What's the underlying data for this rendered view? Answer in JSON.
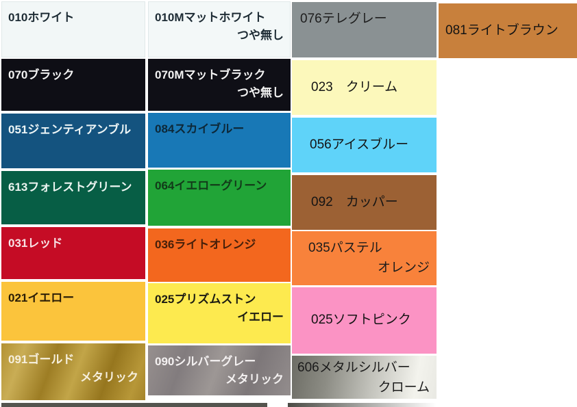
{
  "page": {
    "background": "#ffffff"
  },
  "columns": [
    {
      "cells": [
        {
          "name": "swatch-010-white",
          "line1": "010ホワイト",
          "line2": "",
          "bg": "#f2f7f7",
          "fg": "#1e2c35",
          "border": "#e0e8e9",
          "finish": "",
          "valign": "top"
        },
        {
          "name": "swatch-070-black",
          "line1": "070ブラック",
          "line2": "",
          "bg": "#0e0e15",
          "fg": "#f2f2f2",
          "finish": "",
          "valign": "top"
        },
        {
          "name": "swatch-051-gentian-blue",
          "line1": "051ジェンティアンブル",
          "line2": "",
          "bg": "#14537f",
          "fg": "#edf5f6",
          "finish": "",
          "valign": "top"
        },
        {
          "name": "swatch-613-forest-green",
          "line1": "613フォレストグリーン",
          "line2": "",
          "bg": "#075e45",
          "fg": "#ebf4f0",
          "finish": "",
          "valign": "top"
        },
        {
          "name": "swatch-031-red",
          "line1": "031レッド",
          "line2": "",
          "bg": "#c50c25",
          "fg": "#f7e3e6",
          "finish": "",
          "valign": "top"
        },
        {
          "name": "swatch-021-yellow",
          "line1": "021イエロー",
          "line2": "",
          "bg": "#fbc43c",
          "fg": "#2a1d06",
          "finish": "",
          "valign": "top"
        },
        {
          "name": "swatch-091-gold-metallic",
          "line1": "091ゴールド",
          "line2": "メタリック",
          "bg": "",
          "fg": "#f6efdd",
          "finish": "metallic-gold",
          "valign": "top"
        }
      ]
    },
    {
      "cells": [
        {
          "name": "swatch-010m-matte-white",
          "line1": "010Mマットホワイト",
          "line2": "つや無し",
          "bg": "#f3f8f8",
          "fg": "#1e2c35",
          "border": "#e0e8e9",
          "finish": "",
          "valign": "top"
        },
        {
          "name": "swatch-070m-matte-black",
          "line1": "070Mマットブラック",
          "line2": "つや無し",
          "bg": "#0f0f16",
          "fg": "#f2f2f2",
          "finish": "",
          "valign": "top"
        },
        {
          "name": "swatch-084-sky-blue",
          "line1": "084スカイブルー",
          "line2": "",
          "bg": "#1878b6",
          "fg": "#0d2838",
          "finish": "",
          "valign": "top"
        },
        {
          "name": "swatch-064-yellow-green",
          "line1": "064イエローグリーン",
          "line2": "",
          "bg": "#21a437",
          "fg": "#123a19",
          "finish": "",
          "valign": "top"
        },
        {
          "name": "swatch-036-light-orange",
          "line1": "036ライトオレンジ",
          "line2": "",
          "bg": "#f3671e",
          "fg": "#47200a",
          "finish": "",
          "valign": "top"
        },
        {
          "name": "swatch-025-prism-stone-yellow",
          "line1": "025プリズムストン",
          "line2": "イエロー",
          "bg": "#fdea4f",
          "fg": "#1b1b12",
          "finish": "",
          "valign": "top"
        },
        {
          "name": "swatch-090-silver-gray-metallic",
          "line1": "090シルバーグレー",
          "line2": "メタリック",
          "bg": "",
          "fg": "#f4f1f1",
          "finish": "metallic-silver",
          "valign": "top"
        }
      ]
    },
    {
      "cells": [
        {
          "name": "swatch-076-telegray",
          "line1": "076テレグレー",
          "line2": "",
          "bg": "#8a9193",
          "fg": "#1d1d1d",
          "finish": "",
          "valign": "top"
        },
        {
          "name": "swatch-023-cream",
          "line1": "023　クリーム",
          "line2": "",
          "bg": "#fcf8bb",
          "fg": "#141414",
          "finish": "",
          "valign": "center"
        },
        {
          "name": "swatch-056-ice-blue",
          "line1": "056アイスブルー",
          "line2": "",
          "bg": "#5fd3f9",
          "fg": "#141414",
          "finish": "",
          "valign": "center"
        },
        {
          "name": "swatch-092-copper",
          "line1": "092　カッパー",
          "line2": "",
          "bg": "#9c6134",
          "fg": "#141414",
          "finish": "",
          "valign": "center"
        },
        {
          "name": "swatch-035-pastel-orange",
          "line1": "035パステル",
          "line2": "オレンジ",
          "bg": "#f8823b",
          "fg": "#1c1c1c",
          "finish": "",
          "valign": "top"
        },
        {
          "name": "swatch-025-soft-pink",
          "line1": "025ソフトピンク",
          "line2": "",
          "bg": "#fb93c4",
          "fg": "#141414",
          "finish": "",
          "valign": "center"
        },
        {
          "name": "swatch-606-metal-silver-chrome",
          "line1": "606メタルシルバー",
          "line2": "クローム",
          "bg": "",
          "fg": "#1b1b1b",
          "finish": "chrome",
          "valign": "top"
        }
      ]
    },
    {
      "cells": [
        {
          "name": "swatch-081-light-brown",
          "line1": "081ライトブラウン",
          "line2": "",
          "bg": "#c8803c",
          "fg": "#131313",
          "finish": "",
          "valign": "center"
        }
      ]
    }
  ],
  "partial_next_row": {
    "left_strip_color": "#54544e",
    "right_strip_gradient_from": "#4b4b45",
    "right_strip_gradient_to": "#ffffff"
  },
  "chart_data": {
    "type": "table",
    "title": "カラーチャート (color swatch chart)",
    "columns": [
      "code_name",
      "hex"
    ],
    "rows": [
      {
        "label": "010ホワイト",
        "hex": "#f2f7f7"
      },
      {
        "label": "010Mマットホワイト つや無し",
        "hex": "#f3f8f8"
      },
      {
        "label": "076テレグレー",
        "hex": "#8a9193"
      },
      {
        "label": "081ライトブラウン",
        "hex": "#c8803c"
      },
      {
        "label": "070ブラック",
        "hex": "#0e0e15"
      },
      {
        "label": "070Mマットブラック つや無し",
        "hex": "#0f0f16"
      },
      {
        "label": "023　クリーム",
        "hex": "#fcf8bb"
      },
      {
        "label": "051ジェンティアンブル",
        "hex": "#14537f"
      },
      {
        "label": "084スカイブルー",
        "hex": "#1878b6"
      },
      {
        "label": "056アイスブルー",
        "hex": "#5fd3f9"
      },
      {
        "label": "613フォレストグリーン",
        "hex": "#075e45"
      },
      {
        "label": "064イエローグリーン",
        "hex": "#21a437"
      },
      {
        "label": "092　カッパー",
        "hex": "#9c6134"
      },
      {
        "label": "031レッド",
        "hex": "#c50c25"
      },
      {
        "label": "036ライトオレンジ",
        "hex": "#f3671e"
      },
      {
        "label": "035パステル オレンジ",
        "hex": "#f8823b"
      },
      {
        "label": "021イエロー",
        "hex": "#fbc43c"
      },
      {
        "label": "025プリズムストン イエロー",
        "hex": "#fdea4f"
      },
      {
        "label": "025ソフトピンク",
        "hex": "#fb93c4"
      },
      {
        "label": "091ゴールド メタリック",
        "hex": "gradient(#c9ad55→#96761e)"
      },
      {
        "label": "090シルバーグレー メタリック",
        "hex": "gradient(#97908f→#7d7779)"
      },
      {
        "label": "606メタルシルバー クローム",
        "hex": "gradient(#6d6d65→#f3f3ed)"
      }
    ],
    "layout_hint": "4-column swatch grid; column 4 has only one filled cell; a next row is cut off at the bottom edge"
  }
}
